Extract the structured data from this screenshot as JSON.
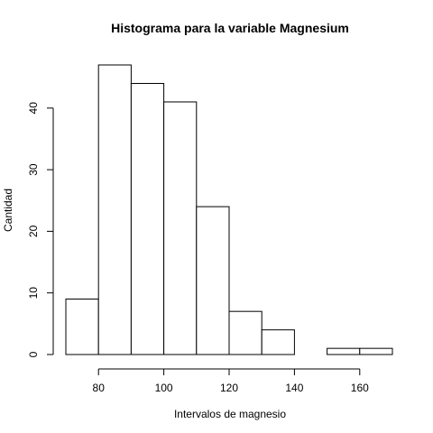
{
  "chart_data": {
    "type": "bar",
    "title": "Histograma para la variable Magnesium",
    "xlabel": "Intervalos de magnesio",
    "ylabel": "Cantidad",
    "bins": [
      {
        "start": 70,
        "end": 80,
        "count": 9
      },
      {
        "start": 80,
        "end": 90,
        "count": 47
      },
      {
        "start": 90,
        "end": 100,
        "count": 44
      },
      {
        "start": 100,
        "end": 110,
        "count": 41
      },
      {
        "start": 110,
        "end": 120,
        "count": 24
      },
      {
        "start": 120,
        "end": 130,
        "count": 7
      },
      {
        "start": 130,
        "end": 140,
        "count": 4
      },
      {
        "start": 140,
        "end": 150,
        "count": 0
      },
      {
        "start": 150,
        "end": 160,
        "count": 1
      },
      {
        "start": 160,
        "end": 170,
        "count": 1
      }
    ],
    "xlim": [
      70,
      170
    ],
    "ylim": [
      0,
      47
    ],
    "x_ticks": [
      80,
      100,
      120,
      140,
      160
    ],
    "x_tick_labels": [
      "80",
      "100",
      "120",
      "140",
      "160"
    ],
    "y_ticks": [
      0,
      10,
      20,
      30,
      40
    ],
    "y_tick_labels": [
      "0",
      "10",
      "20",
      "30",
      "40"
    ],
    "grid": false,
    "legend": "none",
    "colors": {
      "bar_fill": "#ffffff",
      "bar_stroke": "#000000",
      "background": "#ffffff"
    }
  }
}
